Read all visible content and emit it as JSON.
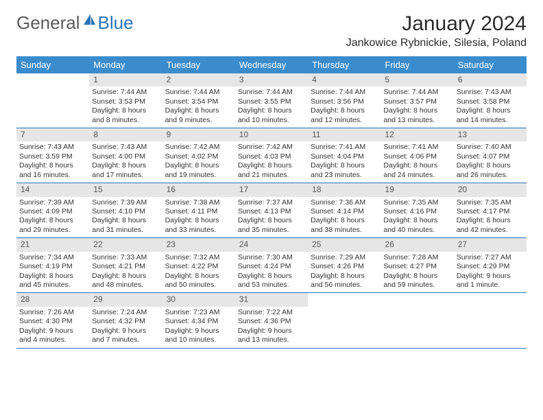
{
  "brand": {
    "part1": "General",
    "part2": "Blue"
  },
  "title": "January 2024",
  "location": "Jankowice Rybnickie, Silesia, Poland",
  "colors": {
    "header_bg": "#3b8ccc",
    "header_text": "#ffffff",
    "accent": "#2a73b8",
    "daynum_bg": "#e6e6e6",
    "text": "#333333"
  },
  "weekdays": [
    "Sunday",
    "Monday",
    "Tuesday",
    "Wednesday",
    "Thursday",
    "Friday",
    "Saturday"
  ],
  "calendar": {
    "type": "calendar-table",
    "columns": 7,
    "cell_fontsize_pt": 8,
    "daynum_fontsize_pt": 9,
    "weeks": [
      [
        {
          "n": "",
          "lines": []
        },
        {
          "n": "1",
          "lines": [
            "Sunrise: 7:44 AM",
            "Sunset: 3:53 PM",
            "Daylight: 8 hours",
            "and 8 minutes."
          ]
        },
        {
          "n": "2",
          "lines": [
            "Sunrise: 7:44 AM",
            "Sunset: 3:54 PM",
            "Daylight: 8 hours",
            "and 9 minutes."
          ]
        },
        {
          "n": "3",
          "lines": [
            "Sunrise: 7:44 AM",
            "Sunset: 3:55 PM",
            "Daylight: 8 hours",
            "and 10 minutes."
          ]
        },
        {
          "n": "4",
          "lines": [
            "Sunrise: 7:44 AM",
            "Sunset: 3:56 PM",
            "Daylight: 8 hours",
            "and 12 minutes."
          ]
        },
        {
          "n": "5",
          "lines": [
            "Sunrise: 7:44 AM",
            "Sunset: 3:57 PM",
            "Daylight: 8 hours",
            "and 13 minutes."
          ]
        },
        {
          "n": "6",
          "lines": [
            "Sunrise: 7:43 AM",
            "Sunset: 3:58 PM",
            "Daylight: 8 hours",
            "and 14 minutes."
          ]
        }
      ],
      [
        {
          "n": "7",
          "lines": [
            "Sunrise: 7:43 AM",
            "Sunset: 3:59 PM",
            "Daylight: 8 hours",
            "and 16 minutes."
          ]
        },
        {
          "n": "8",
          "lines": [
            "Sunrise: 7:43 AM",
            "Sunset: 4:00 PM",
            "Daylight: 8 hours",
            "and 17 minutes."
          ]
        },
        {
          "n": "9",
          "lines": [
            "Sunrise: 7:42 AM",
            "Sunset: 4:02 PM",
            "Daylight: 8 hours",
            "and 19 minutes."
          ]
        },
        {
          "n": "10",
          "lines": [
            "Sunrise: 7:42 AM",
            "Sunset: 4:03 PM",
            "Daylight: 8 hours",
            "and 21 minutes."
          ]
        },
        {
          "n": "11",
          "lines": [
            "Sunrise: 7:41 AM",
            "Sunset: 4:04 PM",
            "Daylight: 8 hours",
            "and 23 minutes."
          ]
        },
        {
          "n": "12",
          "lines": [
            "Sunrise: 7:41 AM",
            "Sunset: 4:06 PM",
            "Daylight: 8 hours",
            "and 24 minutes."
          ]
        },
        {
          "n": "13",
          "lines": [
            "Sunrise: 7:40 AM",
            "Sunset: 4:07 PM",
            "Daylight: 8 hours",
            "and 26 minutes."
          ]
        }
      ],
      [
        {
          "n": "14",
          "lines": [
            "Sunrise: 7:39 AM",
            "Sunset: 4:09 PM",
            "Daylight: 8 hours",
            "and 29 minutes."
          ]
        },
        {
          "n": "15",
          "lines": [
            "Sunrise: 7:39 AM",
            "Sunset: 4:10 PM",
            "Daylight: 8 hours",
            "and 31 minutes."
          ]
        },
        {
          "n": "16",
          "lines": [
            "Sunrise: 7:38 AM",
            "Sunset: 4:11 PM",
            "Daylight: 8 hours",
            "and 33 minutes."
          ]
        },
        {
          "n": "17",
          "lines": [
            "Sunrise: 7:37 AM",
            "Sunset: 4:13 PM",
            "Daylight: 8 hours",
            "and 35 minutes."
          ]
        },
        {
          "n": "18",
          "lines": [
            "Sunrise: 7:36 AM",
            "Sunset: 4:14 PM",
            "Daylight: 8 hours",
            "and 38 minutes."
          ]
        },
        {
          "n": "19",
          "lines": [
            "Sunrise: 7:35 AM",
            "Sunset: 4:16 PM",
            "Daylight: 8 hours",
            "and 40 minutes."
          ]
        },
        {
          "n": "20",
          "lines": [
            "Sunrise: 7:35 AM",
            "Sunset: 4:17 PM",
            "Daylight: 8 hours",
            "and 42 minutes."
          ]
        }
      ],
      [
        {
          "n": "21",
          "lines": [
            "Sunrise: 7:34 AM",
            "Sunset: 4:19 PM",
            "Daylight: 8 hours",
            "and 45 minutes."
          ]
        },
        {
          "n": "22",
          "lines": [
            "Sunrise: 7:33 AM",
            "Sunset: 4:21 PM",
            "Daylight: 8 hours",
            "and 48 minutes."
          ]
        },
        {
          "n": "23",
          "lines": [
            "Sunrise: 7:32 AM",
            "Sunset: 4:22 PM",
            "Daylight: 8 hours",
            "and 50 minutes."
          ]
        },
        {
          "n": "24",
          "lines": [
            "Sunrise: 7:30 AM",
            "Sunset: 4:24 PM",
            "Daylight: 8 hours",
            "and 53 minutes."
          ]
        },
        {
          "n": "25",
          "lines": [
            "Sunrise: 7:29 AM",
            "Sunset: 4:26 PM",
            "Daylight: 8 hours",
            "and 56 minutes."
          ]
        },
        {
          "n": "26",
          "lines": [
            "Sunrise: 7:28 AM",
            "Sunset: 4:27 PM",
            "Daylight: 8 hours",
            "and 59 minutes."
          ]
        },
        {
          "n": "27",
          "lines": [
            "Sunrise: 7:27 AM",
            "Sunset: 4:29 PM",
            "Daylight: 9 hours",
            "and 1 minute."
          ]
        }
      ],
      [
        {
          "n": "28",
          "lines": [
            "Sunrise: 7:26 AM",
            "Sunset: 4:30 PM",
            "Daylight: 9 hours",
            "and 4 minutes."
          ]
        },
        {
          "n": "29",
          "lines": [
            "Sunrise: 7:24 AM",
            "Sunset: 4:32 PM",
            "Daylight: 9 hours",
            "and 7 minutes."
          ]
        },
        {
          "n": "30",
          "lines": [
            "Sunrise: 7:23 AM",
            "Sunset: 4:34 PM",
            "Daylight: 9 hours",
            "and 10 minutes."
          ]
        },
        {
          "n": "31",
          "lines": [
            "Sunrise: 7:22 AM",
            "Sunset: 4:36 PM",
            "Daylight: 9 hours",
            "and 13 minutes."
          ]
        },
        {
          "n": "",
          "lines": []
        },
        {
          "n": "",
          "lines": []
        },
        {
          "n": "",
          "lines": []
        }
      ]
    ]
  }
}
